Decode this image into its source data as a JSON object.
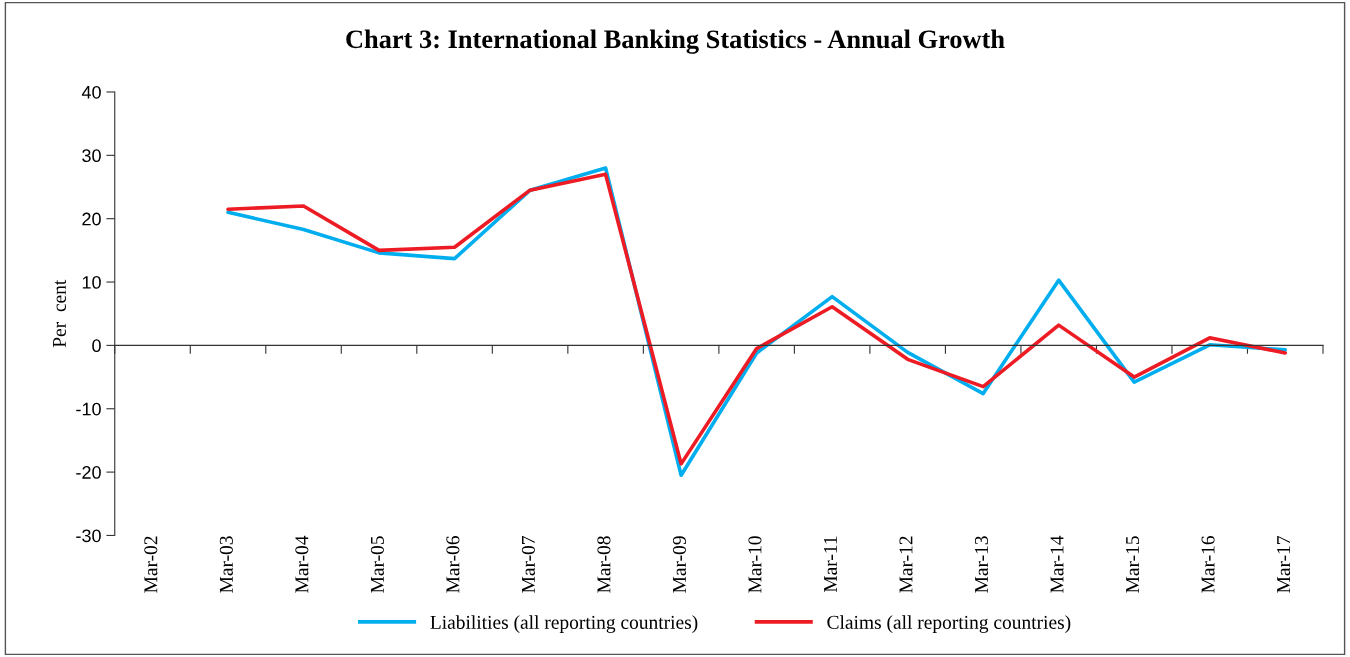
{
  "chart_data": {
    "type": "line",
    "title": "Chart 3: International Banking Statistics - Annual Growth",
    "ylabel": "Per  cent",
    "categories": [
      "Mar-02",
      "Mar-03",
      "Mar-04",
      "Mar-05",
      "Mar-06",
      "Mar-07",
      "Mar-08",
      "Mar-09",
      "Mar-10",
      "Mar-11",
      "Mar-12",
      "Mar-13",
      "Mar-14",
      "Mar-15",
      "Mar-16",
      "Mar-17"
    ],
    "series": [
      {
        "name": "Liabilities (all reporting countries)",
        "color": "#00aeef",
        "values": [
          null,
          21,
          18.3,
          14.6,
          13.7,
          24.5,
          28,
          -20.5,
          -1.2,
          7.7,
          -1.1,
          -7.6,
          10.3,
          -5.8,
          0.1,
          -0.7
        ]
      },
      {
        "name": "Claims (all reporting countries)",
        "color": "#ed1c24",
        "values": [
          null,
          21.5,
          22,
          15,
          15.5,
          24.5,
          27,
          -18.7,
          -0.5,
          6.1,
          -2.2,
          -6.5,
          3.2,
          -5,
          1.2,
          -1.2
        ]
      }
    ],
    "ylim": [
      -30,
      40
    ],
    "yticks": [
      -30,
      -20,
      -10,
      0,
      10,
      20,
      30,
      40
    ],
    "legend": "bottom",
    "marker": "none",
    "line_style": "solid"
  }
}
